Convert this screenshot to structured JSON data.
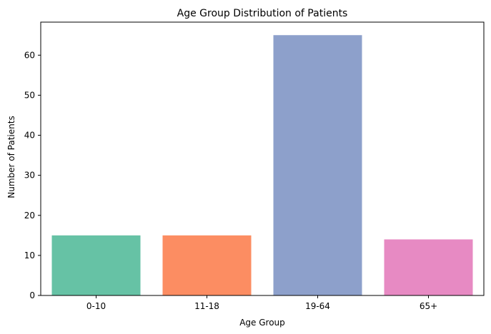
{
  "chart_data": {
    "type": "bar",
    "title": "Age Group Distribution of Patients",
    "xlabel": "Age Group",
    "ylabel": "Number of Patients",
    "categories": [
      "0-10",
      "11-18",
      "19-64",
      "65+"
    ],
    "values": [
      15,
      15,
      65,
      14
    ],
    "colors": [
      "#66c2a5",
      "#fc8d62",
      "#8da0cb",
      "#e78ac3"
    ],
    "ylim": [
      0,
      68.25
    ],
    "yticks": [
      0,
      10,
      20,
      30,
      40,
      50,
      60
    ],
    "grid": false,
    "legend": "none"
  }
}
